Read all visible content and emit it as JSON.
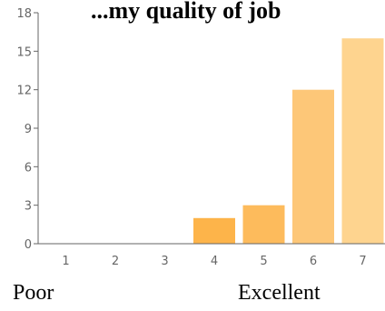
{
  "chart_data": {
    "type": "bar",
    "title": "...my quality of job",
    "categories": [
      "1",
      "2",
      "3",
      "4",
      "5",
      "6",
      "7"
    ],
    "values": [
      0,
      0,
      0,
      2,
      3,
      12,
      16
    ],
    "ylim": [
      0,
      18
    ],
    "yticks": [
      0,
      3,
      6,
      9,
      12,
      15,
      18
    ],
    "bar_colors": [
      "#fdb44a",
      "#fdb44a",
      "#fdb44a",
      "#fdb44a",
      "#fdbb5c",
      "#fdc778",
      "#fed48f"
    ],
    "grid": false,
    "legend": "none"
  },
  "labels": {
    "low": "Poor",
    "high": "Excellent"
  }
}
